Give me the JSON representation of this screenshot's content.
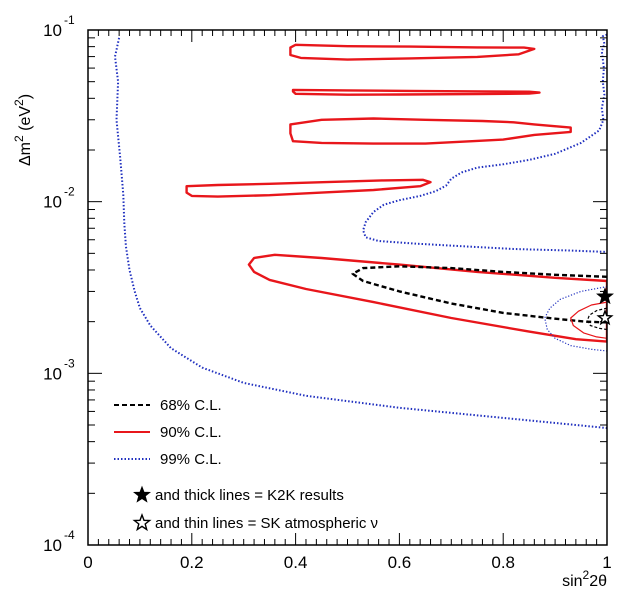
{
  "chart_data": {
    "type": "line",
    "xlabel": {
      "base": "sin",
      "sup": "2",
      "rest": "2θ"
    },
    "ylabel": {
      "pre": "Δm",
      "sup1": "2",
      "unit_pre": " (eV",
      "sup2": "2",
      "unit_post": ")"
    },
    "xlim": [
      0,
      1
    ],
    "ylim": [
      0.0001,
      0.1
    ],
    "yscale": "log",
    "grid": false,
    "legend_position": "bottom-left",
    "x_ticks": [
      {
        "value": 0,
        "label": "0"
      },
      {
        "value": 0.2,
        "label": "0.2"
      },
      {
        "value": 0.4,
        "label": "0.4"
      },
      {
        "value": 0.6,
        "label": "0.6"
      },
      {
        "value": 0.8,
        "label": "0.8"
      },
      {
        "value": 1,
        "label": "1"
      }
    ],
    "y_ticks": [
      {
        "value": 0.1,
        "base": "10",
        "exp": "-1"
      },
      {
        "value": 0.01,
        "base": "10",
        "exp": "-2"
      },
      {
        "value": 0.001,
        "base": "10",
        "exp": "-3"
      },
      {
        "value": 0.0001,
        "base": "10",
        "exp": "-4"
      }
    ],
    "legend": [
      {
        "label": "68% C.L.",
        "style": "dashed",
        "color": "#000000"
      },
      {
        "label": "90% C.L.",
        "style": "solid",
        "color": "#e8161b"
      },
      {
        "label": "99% C.L.",
        "style": "dotted",
        "color": "#1f2fbf"
      }
    ],
    "annotations": [
      {
        "marker": "filled-star",
        "text": "and thick lines = K2K results"
      },
      {
        "marker": "open-star",
        "text": "and thin lines = SK atmospheric ν"
      }
    ],
    "best_fits": [
      {
        "name": "K2K",
        "marker": "filled-star",
        "x": 1.0,
        "y": 0.0028
      },
      {
        "name": "SK atmospheric",
        "marker": "open-star",
        "x": 1.0,
        "y": 0.0021
      }
    ],
    "colors": {
      "cl68": "#000000",
      "cl90": "#e8161b",
      "cl99": "#1f2fbf"
    },
    "contours": [
      {
        "level": "99",
        "thick": true,
        "closed": false,
        "clip": true,
        "points": [
          [
            0.06,
            0.09
          ],
          [
            0.052,
            0.07
          ],
          [
            0.058,
            0.05
          ],
          [
            0.055,
            0.03
          ],
          [
            0.062,
            0.018
          ],
          [
            0.068,
            0.011
          ],
          [
            0.07,
            0.0075
          ],
          [
            0.073,
            0.0055
          ],
          [
            0.08,
            0.004
          ],
          [
            0.09,
            0.003
          ],
          [
            0.1,
            0.0024
          ],
          [
            0.12,
            0.0019
          ],
          [
            0.16,
            0.0014
          ],
          [
            0.22,
            0.00108
          ],
          [
            0.3,
            0.00088
          ],
          [
            0.42,
            0.00074
          ],
          [
            0.6,
            0.00063
          ],
          [
            0.8,
            0.00055
          ],
          [
            0.97,
            0.00049
          ],
          [
            1.0,
            0.00048
          ]
        ]
      },
      {
        "level": "99",
        "thick": true,
        "closed": false,
        "clip": true,
        "points": [
          [
            1.0,
            0.094
          ],
          [
            0.992,
            0.092
          ],
          [
            0.995,
            0.083
          ],
          [
            0.99,
            0.075
          ],
          [
            0.994,
            0.06
          ],
          [
            0.992,
            0.05
          ],
          [
            0.995,
            0.042
          ],
          [
            0.99,
            0.035
          ],
          [
            0.993,
            0.03
          ],
          [
            0.985,
            0.026
          ],
          [
            0.95,
            0.022
          ],
          [
            0.9,
            0.019
          ],
          [
            0.85,
            0.0175
          ],
          [
            0.8,
            0.0165
          ],
          [
            0.75,
            0.0158
          ],
          [
            0.72,
            0.0148
          ],
          [
            0.7,
            0.0136
          ],
          [
            0.69,
            0.0124
          ],
          [
            0.67,
            0.0115
          ],
          [
            0.64,
            0.0108
          ],
          [
            0.6,
            0.0102
          ],
          [
            0.57,
            0.0096
          ],
          [
            0.55,
            0.0087
          ],
          [
            0.535,
            0.0076
          ],
          [
            0.53,
            0.0068
          ],
          [
            0.535,
            0.0062
          ],
          [
            0.56,
            0.0059
          ],
          [
            0.63,
            0.0057
          ],
          [
            0.72,
            0.0055
          ],
          [
            0.82,
            0.0053
          ],
          [
            0.92,
            0.0052
          ],
          [
            1.0,
            0.0051
          ]
        ]
      },
      {
        "level": "90",
        "thick": true,
        "closed": true,
        "clip": true,
        "points": [
          [
            1.0,
            0.00345
          ],
          [
            0.9,
            0.0036
          ],
          [
            0.75,
            0.0039
          ],
          [
            0.6,
            0.0043
          ],
          [
            0.45,
            0.0047
          ],
          [
            0.36,
            0.0049
          ],
          [
            0.32,
            0.0047
          ],
          [
            0.31,
            0.0043
          ],
          [
            0.32,
            0.0039
          ],
          [
            0.35,
            0.0035
          ],
          [
            0.42,
            0.0031
          ],
          [
            0.55,
            0.0026
          ],
          [
            0.7,
            0.0021
          ],
          [
            0.85,
            0.00175
          ],
          [
            0.94,
            0.00158
          ],
          [
            1.0,
            0.00153
          ]
        ]
      },
      {
        "level": "90",
        "thick": true,
        "closed": true,
        "clip": false,
        "points": [
          [
            0.19,
            0.0123
          ],
          [
            0.25,
            0.0125
          ],
          [
            0.35,
            0.0127
          ],
          [
            0.46,
            0.013
          ],
          [
            0.57,
            0.0133
          ],
          [
            0.645,
            0.0134
          ],
          [
            0.66,
            0.013
          ],
          [
            0.64,
            0.0123
          ],
          [
            0.55,
            0.0117
          ],
          [
            0.45,
            0.0113
          ],
          [
            0.35,
            0.0109
          ],
          [
            0.25,
            0.0107
          ],
          [
            0.2,
            0.0108
          ],
          [
            0.19,
            0.0113
          ]
        ]
      },
      {
        "level": "90",
        "thick": true,
        "closed": true,
        "clip": false,
        "points": [
          [
            0.39,
            0.0282
          ],
          [
            0.45,
            0.03
          ],
          [
            0.55,
            0.0305
          ],
          [
            0.65,
            0.03
          ],
          [
            0.76,
            0.0295
          ],
          [
            0.82,
            0.029
          ],
          [
            0.86,
            0.0282
          ],
          [
            0.93,
            0.027
          ],
          [
            0.93,
            0.0255
          ],
          [
            0.86,
            0.0245
          ],
          [
            0.8,
            0.023
          ],
          [
            0.74,
            0.0225
          ],
          [
            0.65,
            0.0218
          ],
          [
            0.55,
            0.0218
          ],
          [
            0.45,
            0.022
          ],
          [
            0.395,
            0.0225
          ],
          [
            0.39,
            0.025
          ]
        ]
      },
      {
        "level": "90",
        "thick": true,
        "closed": true,
        "clip": false,
        "points": [
          [
            0.395,
            0.0448
          ],
          [
            0.5,
            0.0445
          ],
          [
            0.62,
            0.0442
          ],
          [
            0.76,
            0.0439
          ],
          [
            0.85,
            0.0437
          ],
          [
            0.87,
            0.0432
          ],
          [
            0.85,
            0.0426
          ],
          [
            0.75,
            0.0423
          ],
          [
            0.6,
            0.0421
          ],
          [
            0.5,
            0.042
          ],
          [
            0.4,
            0.0425
          ],
          [
            0.395,
            0.0438
          ]
        ]
      },
      {
        "level": "90",
        "thick": true,
        "closed": true,
        "clip": false,
        "points": [
          [
            0.4,
            0.082
          ],
          [
            0.5,
            0.0805
          ],
          [
            0.62,
            0.08
          ],
          [
            0.75,
            0.0792
          ],
          [
            0.84,
            0.079
          ],
          [
            0.86,
            0.0776
          ],
          [
            0.83,
            0.0722
          ],
          [
            0.75,
            0.0697
          ],
          [
            0.62,
            0.0683
          ],
          [
            0.5,
            0.0672
          ],
          [
            0.41,
            0.0688
          ],
          [
            0.39,
            0.0715
          ],
          [
            0.39,
            0.079
          ]
        ]
      },
      {
        "level": "68",
        "thick": true,
        "closed": false,
        "clip": true,
        "points": [
          [
            1.0,
            0.00365
          ],
          [
            0.9,
            0.00375
          ],
          [
            0.8,
            0.0039
          ],
          [
            0.7,
            0.0041
          ],
          [
            0.6,
            0.0042
          ],
          [
            0.53,
            0.0041
          ],
          [
            0.51,
            0.0038
          ],
          [
            0.53,
            0.00345
          ],
          [
            0.6,
            0.003
          ],
          [
            0.7,
            0.00255
          ],
          [
            0.8,
            0.00225
          ],
          [
            0.9,
            0.00208
          ],
          [
            0.96,
            0.002
          ],
          [
            1.0,
            0.00198
          ]
        ]
      },
      {
        "level": "99",
        "thick": false,
        "closed": false,
        "clip": true,
        "points": [
          [
            1.0,
            0.0032
          ],
          [
            0.95,
            0.003
          ],
          [
            0.91,
            0.0027
          ],
          [
            0.89,
            0.0024
          ],
          [
            0.88,
            0.0021
          ],
          [
            0.885,
            0.0018
          ],
          [
            0.9,
            0.0016
          ],
          [
            0.93,
            0.00145
          ],
          [
            0.97,
            0.00138
          ],
          [
            1.0,
            0.00135
          ]
        ]
      },
      {
        "level": "90",
        "thick": false,
        "closed": false,
        "clip": true,
        "points": [
          [
            1.0,
            0.0026
          ],
          [
            0.97,
            0.0025
          ],
          [
            0.945,
            0.0023
          ],
          [
            0.93,
            0.0021
          ],
          [
            0.935,
            0.0019
          ],
          [
            0.955,
            0.00172
          ],
          [
            0.98,
            0.00163
          ],
          [
            1.0,
            0.0016
          ]
        ]
      },
      {
        "level": "68",
        "thick": false,
        "closed": false,
        "clip": true,
        "points": [
          [
            1.0,
            0.0024
          ],
          [
            0.98,
            0.00232
          ],
          [
            0.966,
            0.00218
          ],
          [
            0.962,
            0.00203
          ],
          [
            0.968,
            0.0019
          ],
          [
            0.985,
            0.00183
          ],
          [
            1.0,
            0.0018
          ]
        ]
      }
    ]
  }
}
